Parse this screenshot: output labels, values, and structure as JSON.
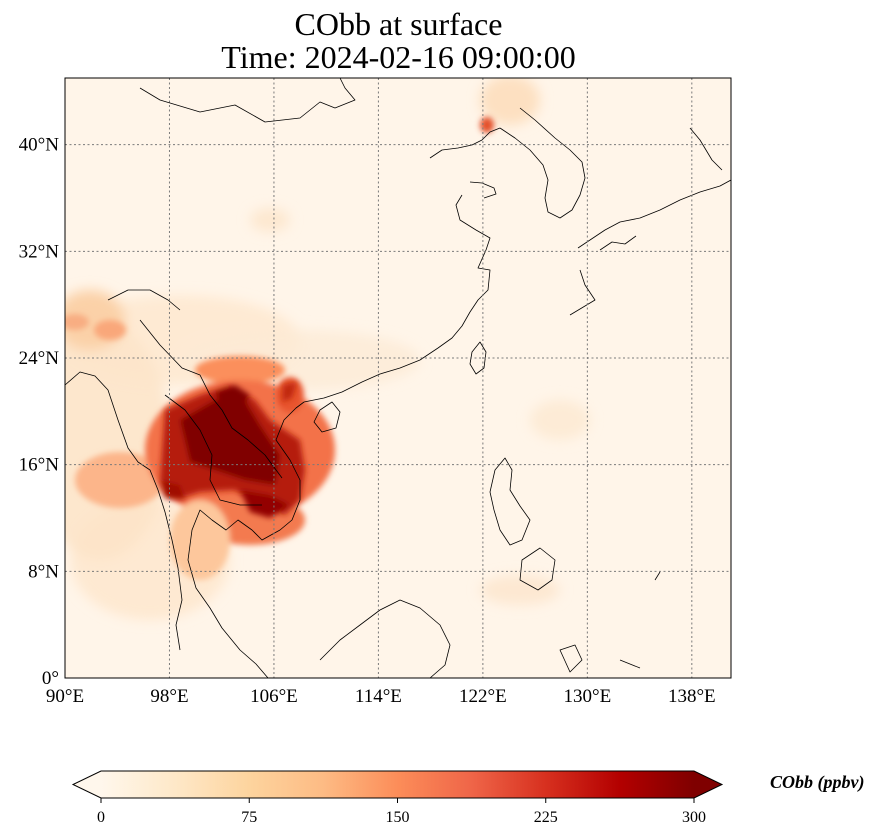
{
  "title": {
    "line1": "CObb at surface",
    "line2": "Time: 2024-02-16 09:00:00"
  },
  "map": {
    "variable": "CObb",
    "level": "surface",
    "time": "2024-02-16 09:00:00",
    "lon_range": [
      90,
      141
    ],
    "lat_range": [
      0,
      45
    ],
    "longitude_ticks": [
      "90°E",
      "98°E",
      "106°E",
      "114°E",
      "122°E",
      "130°E",
      "138°E"
    ],
    "latitude_ticks": [
      "0°",
      "8°N",
      "16°N",
      "24°N",
      "32°N",
      "40°N"
    ],
    "gridlines": "dotted",
    "coastlines": true,
    "borders": true
  },
  "colorbar": {
    "label": "CObb (ppbv)",
    "ticks": [
      "0",
      "75",
      "150",
      "225",
      "300"
    ],
    "range": [
      0,
      300
    ],
    "extend": "both",
    "colormap": "OrRd",
    "colors": [
      "#fff7ec",
      "#fee8c8",
      "#fdd49e",
      "#fdbb84",
      "#fc8d59",
      "#ef6548",
      "#d7301f",
      "#b30000",
      "#7f0000"
    ]
  }
}
